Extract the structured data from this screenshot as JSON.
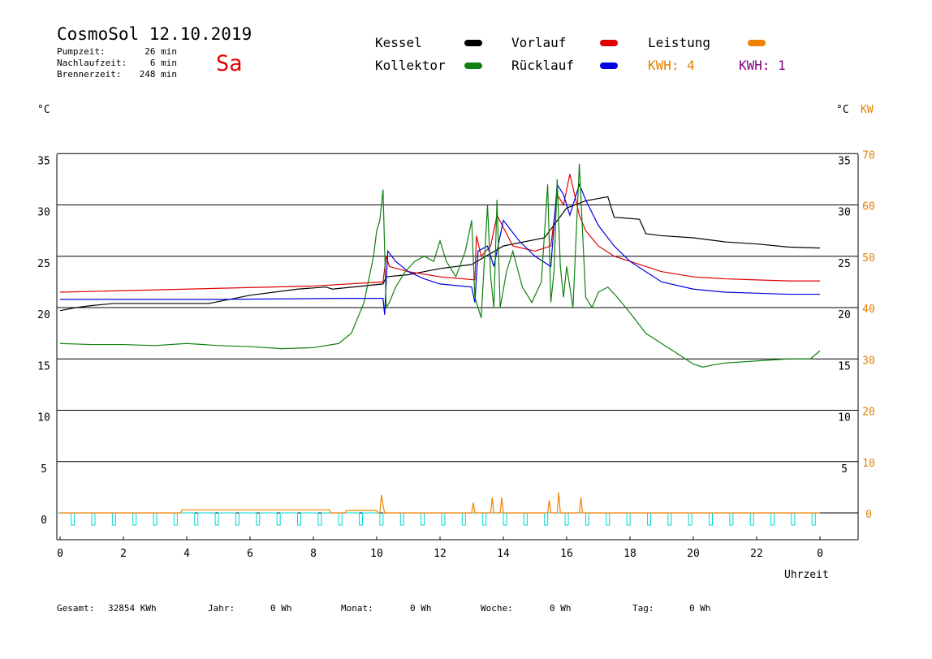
{
  "header": {
    "title": "CosmoSol 12.10.2019",
    "day": "Sa",
    "stats": [
      {
        "label": "Pumpzeit:",
        "value": "26 min"
      },
      {
        "label": "Nachlaufzeit:",
        "value": "6 min"
      },
      {
        "label": "Brennerzeit:",
        "value": "248 min"
      }
    ]
  },
  "legend": {
    "items": [
      {
        "label": "Kessel",
        "color": "#000000"
      },
      {
        "label": "Vorlauf",
        "color": "#e00000"
      },
      {
        "label": "Leistung",
        "color": "#f08000"
      },
      {
        "label": "Kollektor",
        "color": "#108010"
      },
      {
        "label": "Rücklauf",
        "color": "#0000e0"
      }
    ],
    "kwh_orange": "KWH: 4",
    "kwh_purple": "KWH: 1",
    "kwh_orange_color": "#e08000",
    "kwh_purple_color": "#800080"
  },
  "axes": {
    "left_unit": "°C",
    "right_unit": "°C",
    "right_unit2": "KW",
    "xlabel": "Uhrzeit"
  },
  "footer": [
    {
      "label": "Gesamt:",
      "value": "32854 KWh"
    },
    {
      "label": "Jahr:",
      "value": "0 Wh"
    },
    {
      "label": "Monat:",
      "value": "0 Wh"
    },
    {
      "label": "Woche:",
      "value": "0 Wh"
    },
    {
      "label": "Tag:",
      "value": "0 Wh"
    }
  ],
  "chart_data": {
    "type": "line",
    "xlim": [
      0,
      24
    ],
    "ylim": [
      -2.5,
      35
    ],
    "y2lim": [
      -5,
      70
    ],
    "x_ticks": [
      "0",
      "2",
      "4",
      "6",
      "8",
      "10",
      "12",
      "14",
      "16",
      "18",
      "20",
      "22",
      "0"
    ],
    "y_ticks": [
      0,
      5,
      10,
      15,
      20,
      25,
      30,
      35
    ],
    "y2_ticks": [
      0,
      10,
      20,
      30,
      40,
      50,
      60,
      70
    ],
    "grid": true,
    "series": [
      {
        "name": "Kessel",
        "color": "#000000",
        "x": [
          0,
          0.5,
          1,
          1.7,
          4.7,
          6,
          7.5,
          8.4,
          8.6,
          10.2,
          10.3,
          11,
          12,
          13,
          14,
          15.3,
          16,
          16.6,
          17.3,
          17.5,
          18.3,
          18.5,
          19,
          20,
          21,
          22,
          23,
          24
        ],
        "y": [
          19.7,
          20,
          20.2,
          20.4,
          20.4,
          21.2,
          21.8,
          22.0,
          21.8,
          22.3,
          23.0,
          23.2,
          23.8,
          24.2,
          26.0,
          26.8,
          29.7,
          30.4,
          30.8,
          28.8,
          28.6,
          27.2,
          27.0,
          26.8,
          26.4,
          26.2,
          25.9,
          25.8
        ]
      },
      {
        "name": "Vorlauf",
        "color": "#e00000",
        "x": [
          0,
          4,
          8,
          10.2,
          10.3,
          10.4,
          11,
          12,
          13.1,
          13.15,
          13.3,
          13.6,
          13.8,
          14.3,
          15.0,
          15.5,
          15.7,
          15.9,
          16.1,
          16.4,
          16.6,
          17,
          17.5,
          18,
          19,
          20,
          21,
          22,
          23,
          24
        ],
        "y": [
          21.5,
          21.8,
          22.1,
          22.5,
          25.0,
          24.0,
          23.5,
          23.0,
          22.7,
          27.0,
          25.0,
          26.0,
          29.0,
          26.0,
          25.5,
          26.0,
          31.0,
          30.0,
          33.0,
          29.0,
          27.5,
          26.0,
          25.0,
          24.5,
          23.5,
          23.0,
          22.8,
          22.7,
          22.6,
          22.6
        ]
      },
      {
        "name": "Rücklauf",
        "color": "#0000e0",
        "x": [
          0,
          5,
          9,
          10.2,
          10.25,
          10.35,
          10.6,
          11,
          11.5,
          12,
          13,
          13.1,
          13.2,
          13.5,
          13.7,
          14.0,
          14.5,
          15.0,
          15.5,
          15.7,
          15.9,
          16.1,
          16.4,
          16.6,
          17.0,
          17.5,
          18,
          18.5,
          19,
          20,
          21,
          22,
          23,
          24
        ],
        "y": [
          20.8,
          20.8,
          20.9,
          20.9,
          19.3,
          25.5,
          24.5,
          23.5,
          22.8,
          22.3,
          22.0,
          20.5,
          25.5,
          26.0,
          24.0,
          28.5,
          26.5,
          25.0,
          24.0,
          32.0,
          31.0,
          29.0,
          32.0,
          30.5,
          28.0,
          26.0,
          24.5,
          23.5,
          22.5,
          21.8,
          21.5,
          21.4,
          21.3,
          21.3
        ]
      },
      {
        "name": "Kollektor",
        "color": "#108010",
        "x": [
          0,
          1,
          2,
          3,
          4,
          5,
          6,
          7,
          8,
          8.8,
          9.2,
          9.6,
          9.9,
          10.0,
          10.1,
          10.2,
          10.3,
          10.4,
          10.6,
          10.9,
          11.2,
          11.5,
          11.8,
          12.0,
          12.2,
          12.5,
          12.8,
          13.0,
          13.1,
          13.3,
          13.5,
          13.6,
          13.7,
          13.8,
          13.9,
          14.1,
          14.3,
          14.6,
          14.9,
          15.2,
          15.4,
          15.5,
          15.6,
          15.7,
          15.8,
          15.9,
          16.0,
          16.2,
          16.4,
          16.6,
          16.8,
          17.0,
          17.3,
          17.6,
          18.0,
          18.5,
          19.0,
          19.5,
          20.0,
          20.3,
          20.6,
          21.0,
          22.0,
          23.0,
          23.7,
          24.0
        ],
        "y": [
          16.5,
          16.4,
          16.4,
          16.3,
          16.5,
          16.3,
          16.2,
          16.0,
          16.1,
          16.5,
          17.5,
          20.5,
          25.0,
          27.5,
          28.5,
          31.5,
          20.0,
          20.5,
          22.0,
          23.5,
          24.5,
          25.0,
          24.5,
          26.5,
          24.5,
          23.0,
          25.5,
          28.5,
          21.0,
          19.0,
          30.0,
          23.0,
          20.0,
          30.5,
          20.0,
          23.5,
          25.5,
          22.0,
          20.5,
          22.5,
          32.0,
          20.5,
          23.5,
          32.5,
          24.0,
          21.0,
          24.0,
          20.0,
          34.0,
          21.0,
          20.0,
          21.5,
          22.0,
          21.0,
          19.5,
          17.5,
          16.5,
          15.5,
          14.5,
          14.2,
          14.4,
          14.6,
          14.8,
          15.0,
          15.0,
          15.8
        ]
      }
    ],
    "power": {
      "name": "Leistung",
      "color": "#f08000",
      "y2_values": {
        "x": [
          0,
          3.8,
          3.85,
          8.5,
          8.55,
          9.0,
          9.05,
          10.0,
          10.05,
          10.1,
          10.15,
          10.2,
          10.25,
          10.3,
          13.0,
          13.05,
          13.1,
          13.6,
          13.65,
          13.7,
          13.9,
          13.95,
          14.0,
          15.4,
          15.45,
          15.5,
          15.7,
          15.75,
          15.8,
          16.4,
          16.45,
          16.5,
          24.0
        ],
        "y": [
          0,
          0,
          0.6,
          0.6,
          0,
          0,
          0.5,
          0.5,
          0,
          0,
          3.5,
          1.5,
          0,
          0,
          0,
          2.0,
          0,
          0,
          3.0,
          0,
          0,
          3.0,
          0,
          0,
          2.5,
          0,
          0,
          4.0,
          0,
          0,
          3.0,
          0,
          0
        ]
      }
    }
  }
}
